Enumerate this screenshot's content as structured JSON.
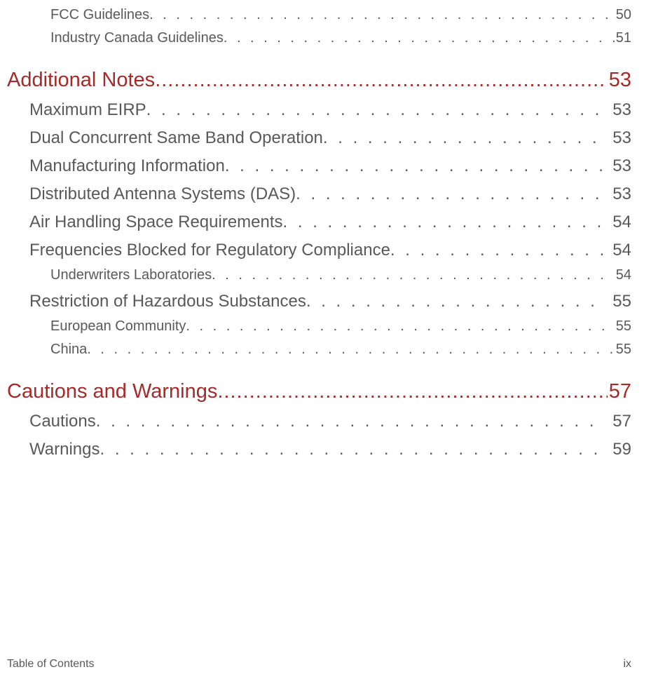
{
  "entries": [
    {
      "level": 3,
      "label": "FCC Guidelines",
      "page": "50"
    },
    {
      "level": 3,
      "label": "Industry Canada Guidelines ",
      "page": "51"
    },
    {
      "level": 1,
      "label": "Additional Notes",
      "page": "53"
    },
    {
      "level": 2,
      "label": "Maximum EIRP",
      "page": "53"
    },
    {
      "level": 2,
      "label": "Dual Concurrent Same Band Operation",
      "page": "53"
    },
    {
      "level": 2,
      "label": "Manufacturing Information ",
      "page": "53"
    },
    {
      "level": 2,
      "label": "Distributed Antenna Systems (DAS)",
      "page": "53"
    },
    {
      "level": 2,
      "label": "Air Handling Space Requirements",
      "page": "54"
    },
    {
      "level": 2,
      "label": "Frequencies Blocked for Regulatory Compliance",
      "page": "54"
    },
    {
      "level": 3,
      "label": "Underwriters Laboratories",
      "page": "54"
    },
    {
      "level": 2,
      "label": "Restriction of Hazardous Substances",
      "page": "55"
    },
    {
      "level": 3,
      "label": "European Community ",
      "page": "55"
    },
    {
      "level": 3,
      "label": "China",
      "page": "55"
    },
    {
      "level": 1,
      "label": "Cautions and Warnings",
      "page": "57"
    },
    {
      "level": 2,
      "label": "Cautions ",
      "page": "57"
    },
    {
      "level": 2,
      "label": "Warnings",
      "page": "59"
    }
  ],
  "footer": {
    "left": "Table of Contents",
    "right": "ix"
  },
  "colors": {
    "heading": "#a52a2a",
    "body": "#595959",
    "background": "#ffffff"
  }
}
